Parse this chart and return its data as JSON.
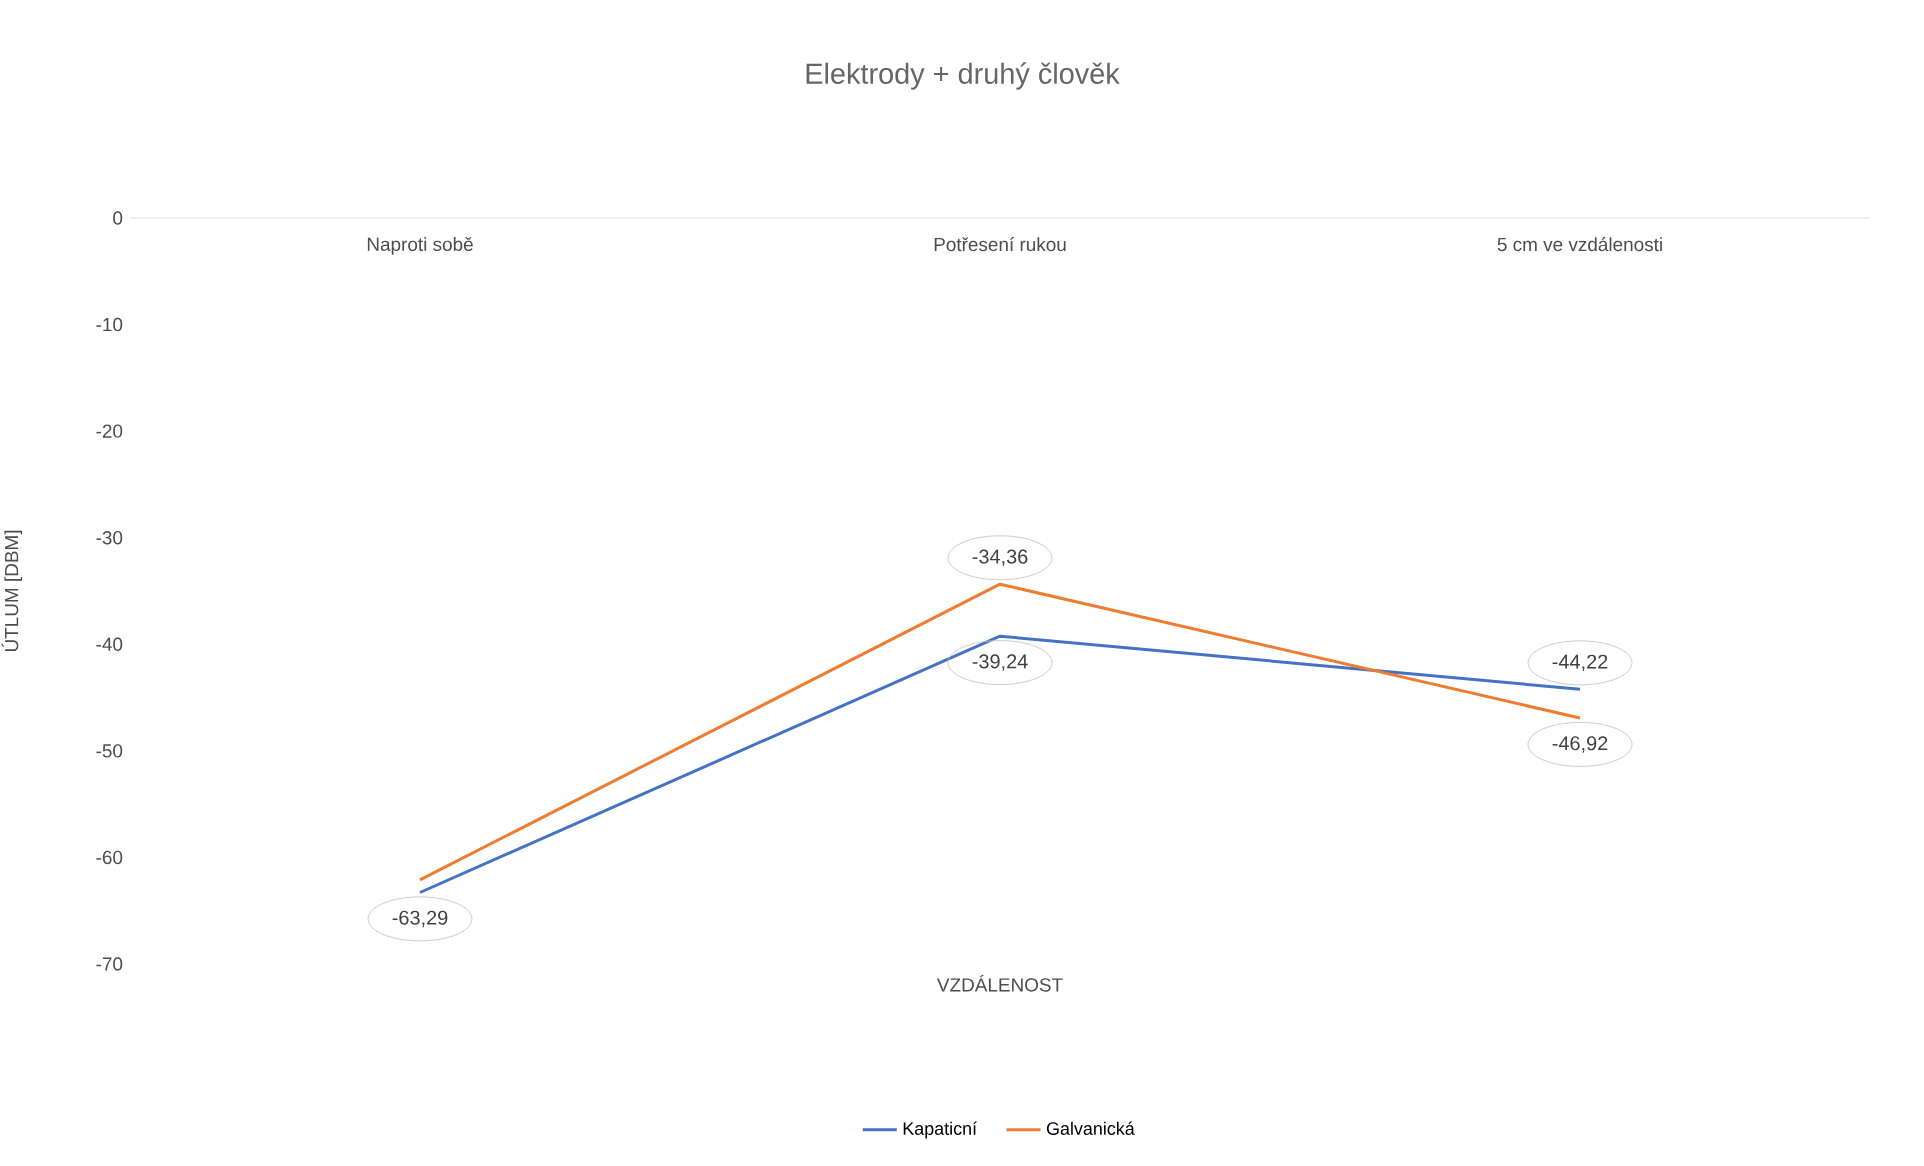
{
  "chart_data": {
    "type": "line",
    "title": "Elektrody + druhý člověk",
    "xlabel": "VZDÁLENOST",
    "ylabel": "ÚTLUM [DBM]",
    "categories": [
      "Naproti sobě",
      "Potřesení rukou",
      "5 cm ve vzdálenosti"
    ],
    "series": [
      {
        "name": "Kapaticní",
        "color": "#4472c4",
        "values": [
          -63.29,
          -39.24,
          -44.22
        ],
        "value_labels": [
          "-63,29",
          "-39,24",
          "-44,22"
        ]
      },
      {
        "name": "Galvanická",
        "color": "#ed7d31",
        "values": [
          -62.1,
          -34.36,
          -46.92
        ],
        "value_labels": [
          null,
          "-34,36",
          "-46,92"
        ]
      }
    ],
    "ylim": [
      -70,
      0
    ],
    "yticks": [
      -70,
      -60,
      -50,
      -40,
      -30,
      -20,
      -10,
      0
    ],
    "legend": "bottom",
    "marker": "none",
    "line_style": "solid"
  }
}
